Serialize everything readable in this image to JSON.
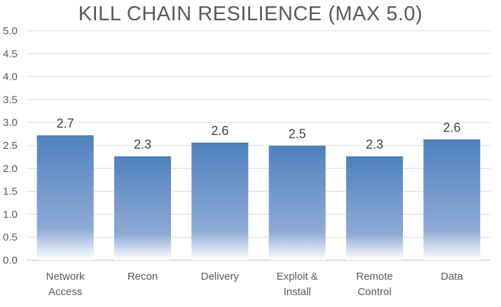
{
  "chart_data": {
    "type": "bar",
    "title": "KILL CHAIN RESILIENCE (MAX 5.0)",
    "categories": [
      [
        "Network",
        "Access"
      ],
      [
        "Recon"
      ],
      [
        "Delivery"
      ],
      [
        "Exploit &",
        "Install"
      ],
      [
        "Remote",
        "Control"
      ],
      [
        "Data"
      ]
    ],
    "values": [
      2.72,
      2.26,
      2.56,
      2.49,
      2.26,
      2.63
    ],
    "data_labels": [
      "2.7",
      "2.3",
      "2.6",
      "2.5",
      "2.3",
      "2.6"
    ],
    "yticks": [
      "0.0",
      "0.5",
      "1.0",
      "1.5",
      "2.0",
      "2.5",
      "3.0",
      "3.5",
      "4.0",
      "4.5",
      "5.0"
    ],
    "ylim": [
      0,
      5
    ],
    "grid": true,
    "xlabel": "",
    "ylabel": "",
    "colors": {
      "bar_top": "#4f81bd",
      "bar_mid": "#8eaad6",
      "bar_bottom": "#ffffff",
      "grid": "#d9d9d9",
      "axis": "#bfbfbf"
    }
  }
}
